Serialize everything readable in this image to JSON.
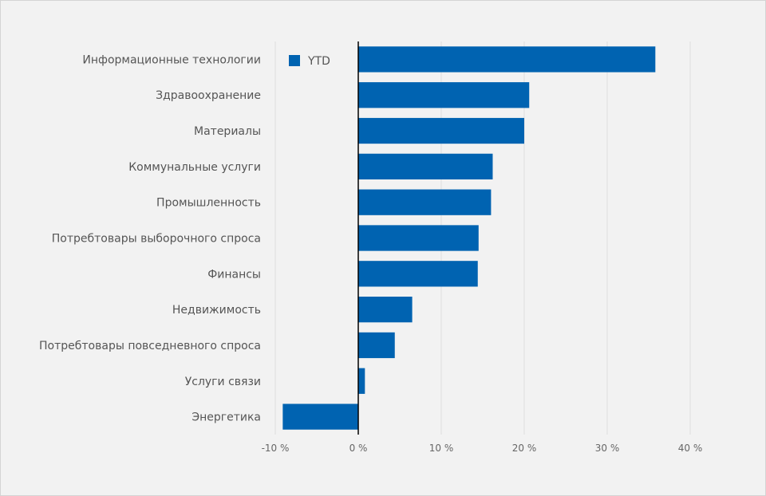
{
  "chart_data": {
    "type": "bar",
    "orientation": "horizontal",
    "categories": [
      "Информационные технологии",
      "Здравоохранение",
      "Материалы",
      "Коммунальные услуги",
      "Промышленность",
      "Потребтовары выборочного спроса",
      "Финансы",
      "Недвижимость",
      "Потребтовары повседневного спроса",
      "Услуги связи",
      "Энергетика"
    ],
    "series": [
      {
        "name": "YTD",
        "color": "#0063b1",
        "values": [
          35.8,
          20.6,
          20.0,
          16.2,
          16.0,
          14.5,
          14.4,
          6.5,
          4.4,
          0.8,
          -9.1
        ]
      }
    ],
    "xlim": [
      -10,
      40
    ],
    "xticks": [
      -10,
      0,
      10,
      20,
      30,
      40
    ],
    "tick_labels": [
      "-10 %",
      "0 %",
      "10 %",
      "20 %",
      "30 %",
      "40 %"
    ],
    "grid": true,
    "legend": {
      "position": "top-left",
      "label": "YTD"
    },
    "title": "",
    "xlabel": "",
    "ylabel": ""
  }
}
